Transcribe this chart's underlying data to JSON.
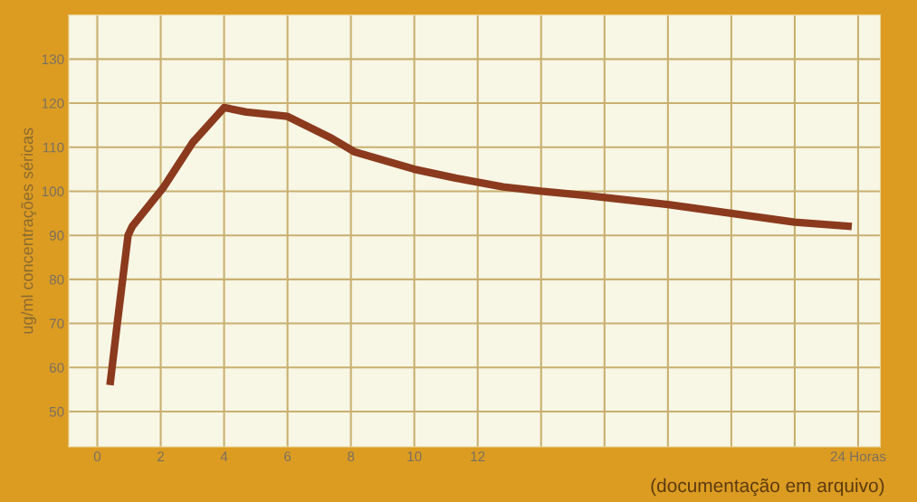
{
  "chart_data": {
    "type": "line",
    "ylabel": "ug/ml concentrações séricas",
    "x": [
      0.4,
      0.63,
      0.97,
      1.1,
      2.1,
      3.0,
      4.0,
      4.7,
      6.0,
      7.4,
      8.1,
      10.0,
      11.3,
      12.8,
      14.0,
      15.5,
      18.0,
      20.0,
      22.0,
      23.8
    ],
    "series": [
      {
        "color": "#8b3a1e",
        "values": [
          56,
          70,
          90,
          92,
          101,
          111,
          119,
          118,
          117,
          112,
          109,
          105,
          103,
          101,
          100,
          99,
          97,
          95,
          93,
          92
        ]
      }
    ],
    "xlim": [
      -0.9,
      24.7
    ],
    "ylim": [
      42,
      140
    ],
    "xticks": [
      0,
      2,
      4,
      6,
      8,
      10,
      12,
      {
        "value": 14,
        "label": null
      },
      {
        "value": 16,
        "label": null
      },
      {
        "value": 18,
        "label": null
      },
      {
        "value": 20,
        "label": null
      },
      {
        "value": 22,
        "label": null
      },
      {
        "value": 24,
        "label": "24 Horas"
      }
    ],
    "yticks": [
      50,
      60,
      70,
      80,
      90,
      100,
      110,
      120,
      130
    ],
    "grid": true,
    "marker": "none",
    "line_style": "solid",
    "annotations": [
      "(documentação em arquivo)"
    ]
  }
}
